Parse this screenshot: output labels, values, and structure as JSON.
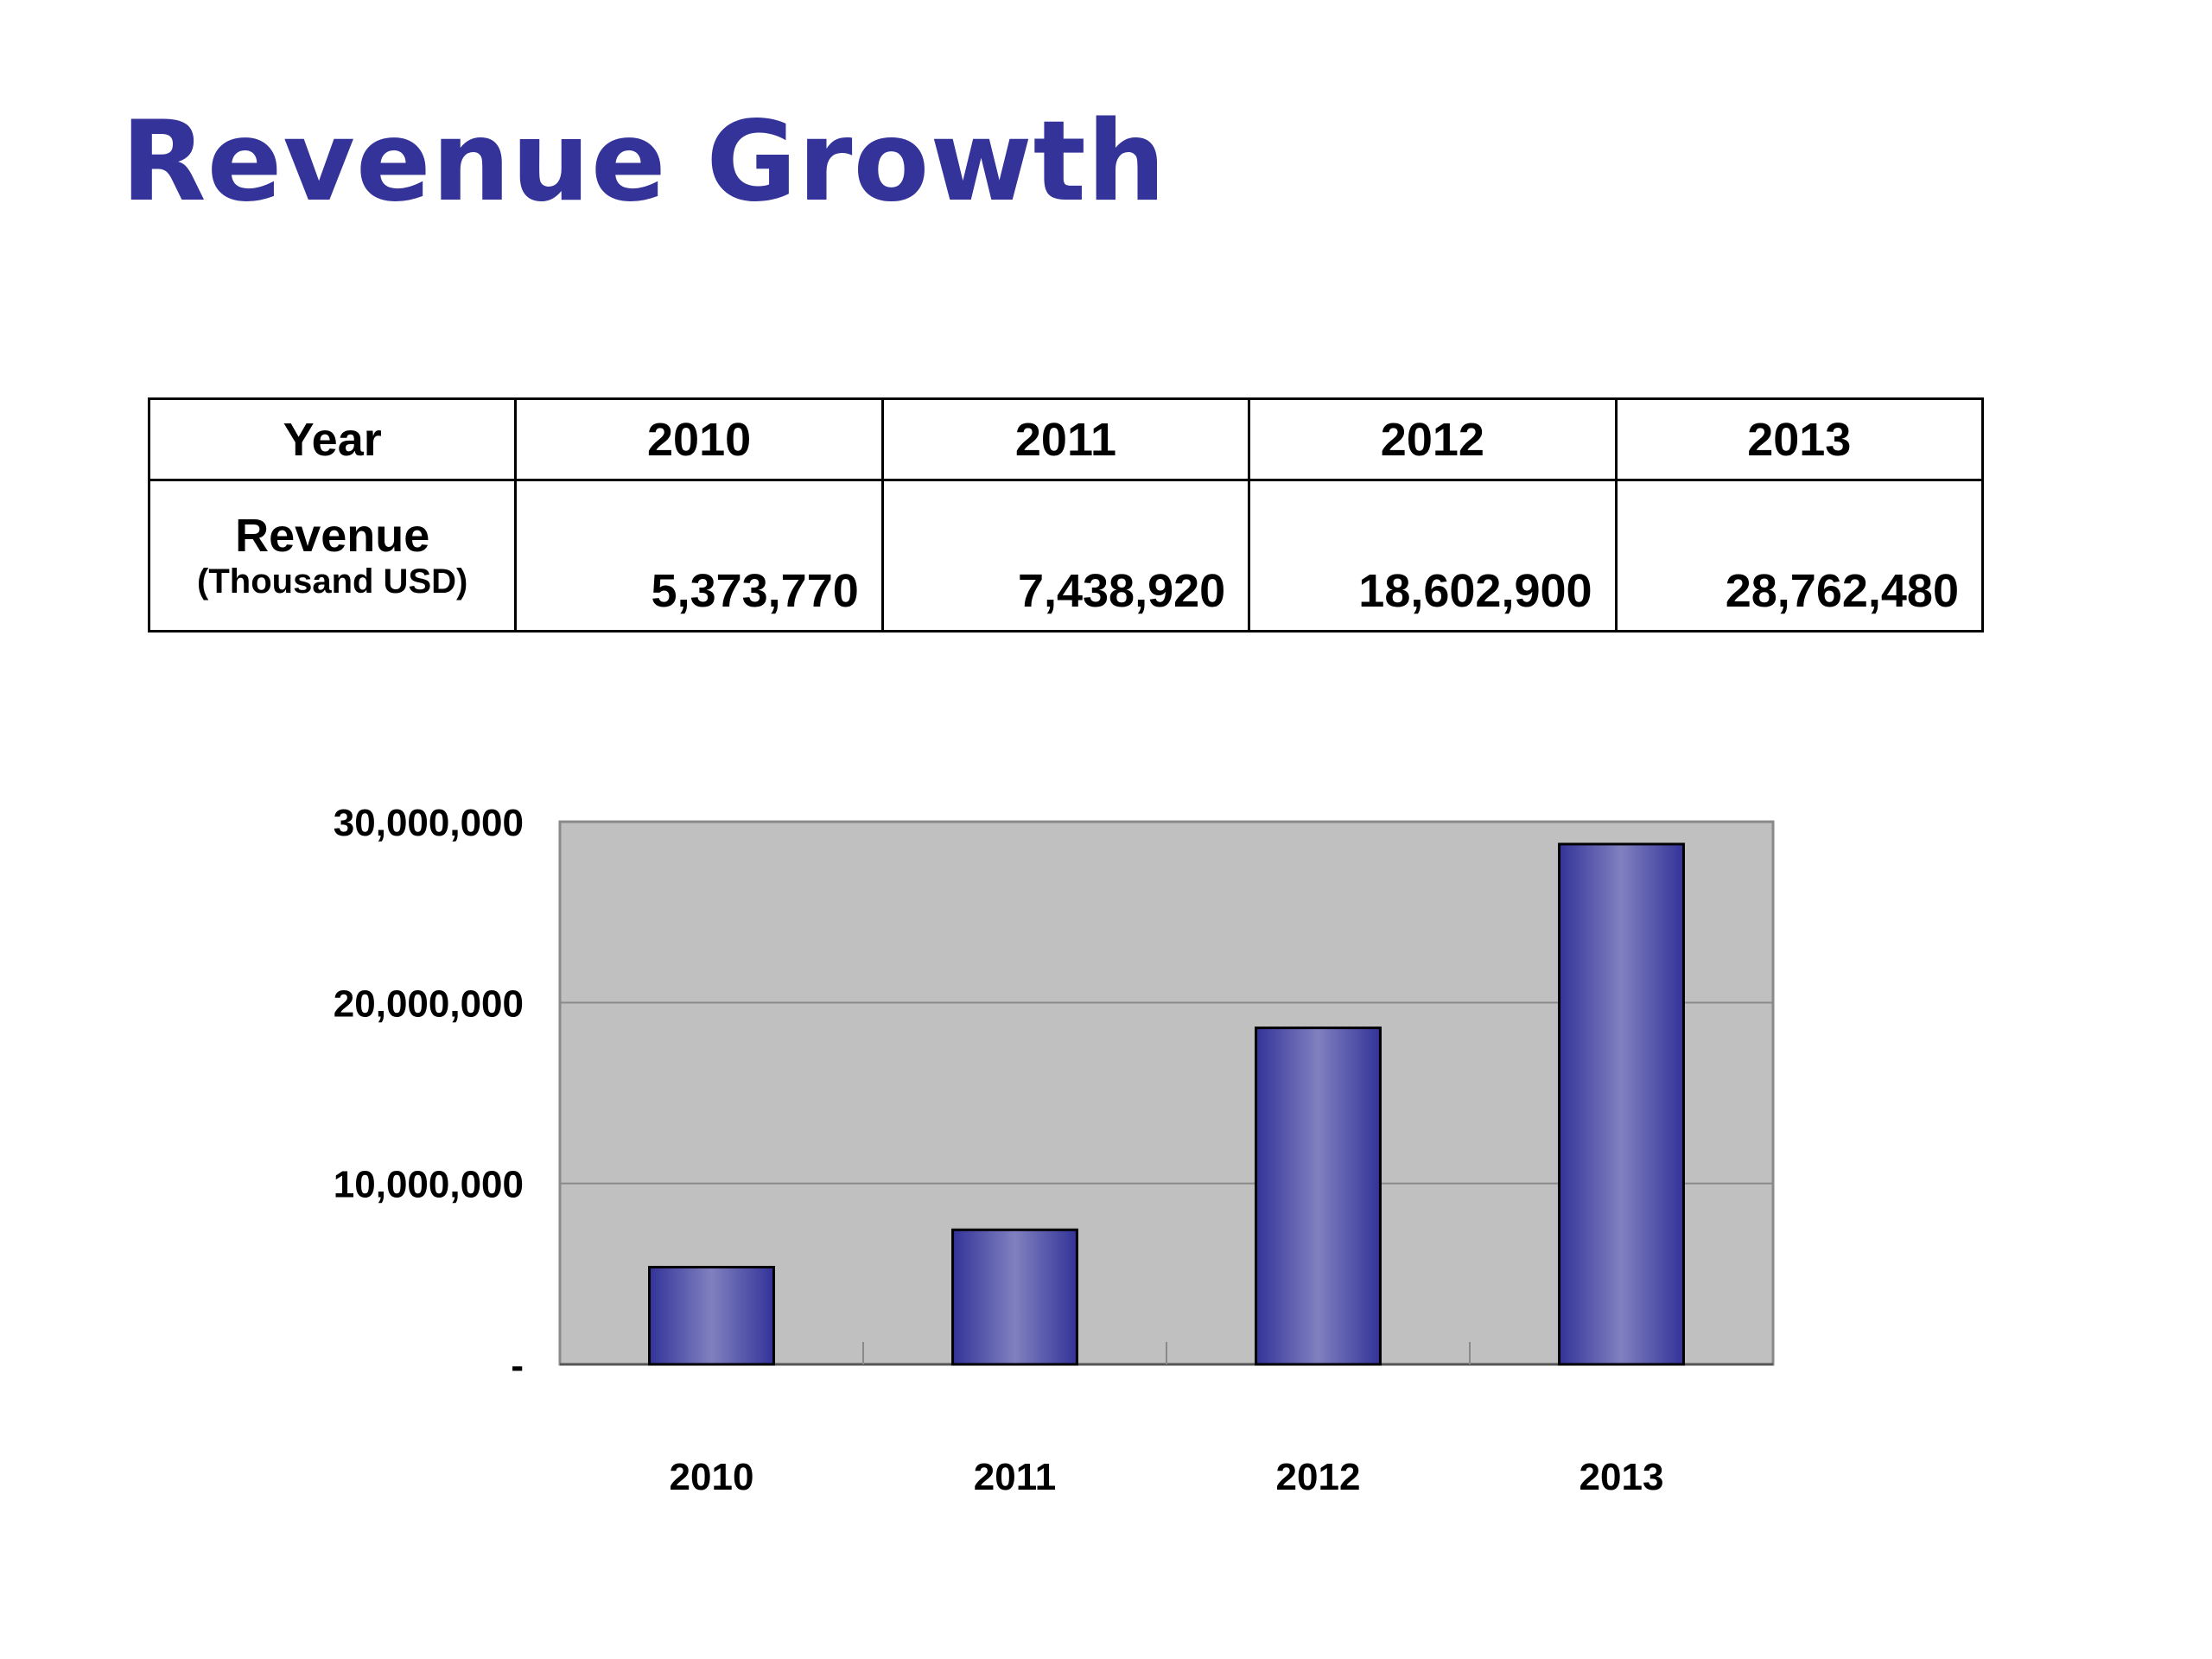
{
  "title": "Revenue Growth",
  "table": {
    "header_label": "Year",
    "years": [
      "2010",
      "2011",
      "2012",
      "2013"
    ],
    "row_label": "Revenue",
    "row_sublabel": "(Thousand USD)",
    "values": [
      "5,373,770",
      "7,438,920",
      "18,602,900",
      "28,762,480"
    ]
  },
  "colors": {
    "title": "#33339a",
    "plot_background": "#c0c0c0",
    "bar_dark": "#333399",
    "bar_light": "#8080c0",
    "gridline": "#8a8a8a"
  },
  "chart_data": {
    "type": "bar",
    "categories": [
      "2010",
      "2011",
      "2012",
      "2013"
    ],
    "values": [
      5373770,
      7438920,
      18602900,
      28762480
    ],
    "ylim": [
      0,
      30000000
    ],
    "yticks": [
      0,
      10000000,
      20000000,
      30000000
    ],
    "ytick_labels": [
      "-",
      "10,000,000",
      "20,000,000",
      "30,000,000"
    ],
    "grid": true,
    "legend": "none"
  }
}
